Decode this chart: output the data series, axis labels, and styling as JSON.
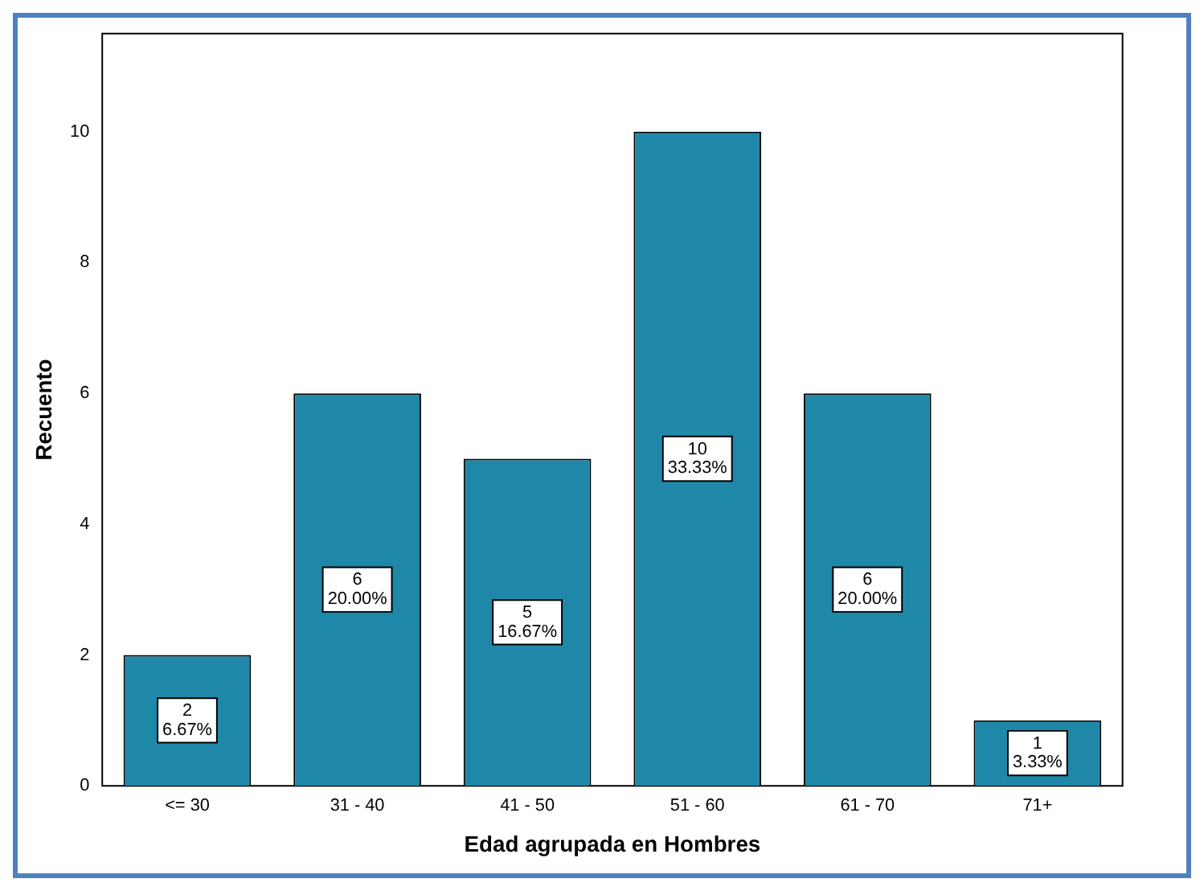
{
  "chart_data": {
    "type": "bar",
    "xlabel": "Edad agrupada en Hombres",
    "ylabel": "Recuento",
    "categories": [
      "<= 30",
      "31 - 40",
      "41 - 50",
      "51 - 60",
      "61 - 70",
      "71+"
    ],
    "values": [
      2,
      6,
      5,
      10,
      6,
      1
    ],
    "value_labels": [
      "2\n6.67%",
      "6\n20.00%",
      "5\n16.67%",
      "10\n33.33%",
      "6\n20.00%",
      "1\n3.33%"
    ],
    "color": "#1f88a8",
    "ylim": [
      0,
      11.5
    ],
    "yticks": [
      0,
      2,
      4,
      6,
      8,
      10
    ],
    "grid": false,
    "legend": false
  }
}
